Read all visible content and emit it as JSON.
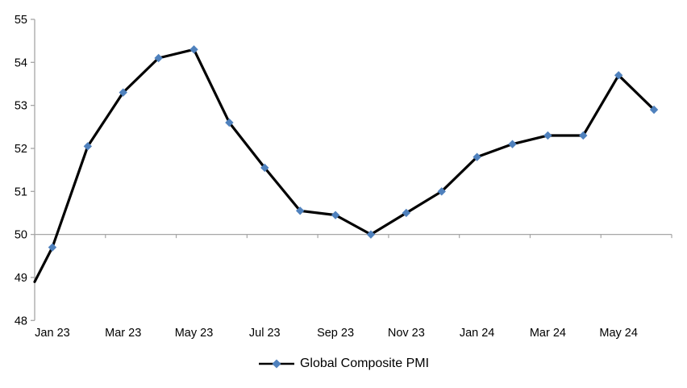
{
  "chart_data": {
    "type": "line",
    "title": "",
    "categories": [
      "Jan 23",
      "Feb 23",
      "Mar 23",
      "Apr 23",
      "May 23",
      "Jun 23",
      "Jul 23",
      "Aug 23",
      "Sep 23",
      "Oct 23",
      "Nov 23",
      "Dec 23",
      "Jan 24",
      "Feb 24",
      "Mar 24",
      "Apr 24",
      "May 24",
      "Jun 24"
    ],
    "series": [
      {
        "name": "Global Composite PMI",
        "values": [
          49.7,
          52.05,
          53.3,
          54.1,
          54.3,
          52.6,
          51.55,
          50.55,
          50.45,
          50.0,
          50.5,
          51.0,
          51.8,
          52.1,
          52.3,
          52.3,
          53.7,
          52.9
        ]
      }
    ],
    "leading_edge_value": 48.9,
    "x_axis": {
      "shown_labels": [
        "Jan 23",
        "Mar 23",
        "May 23",
        "Jul 23",
        "Sep 23",
        "Nov 23",
        "Jan 24",
        "Mar 24",
        "May 24"
      ],
      "label_interval": 2,
      "axis_crosses_at": 50
    },
    "y_axis": {
      "min": 48,
      "max": 55,
      "step": 1,
      "tick_labels": [
        "48",
        "49",
        "50",
        "51",
        "52",
        "53",
        "54",
        "55"
      ]
    },
    "grid": "off",
    "legend_position": "bottom-center",
    "colors": {
      "line": "#000000",
      "marker": "#4f81bd",
      "axis": "#a6a6a6",
      "text": "#000000"
    },
    "legend": {
      "label": "Global Composite PMI"
    }
  }
}
